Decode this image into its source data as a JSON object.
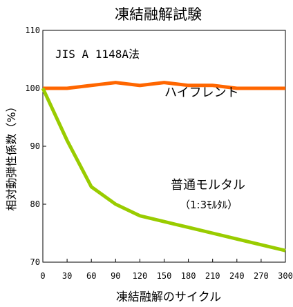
{
  "chart_data": {
    "type": "line",
    "title": "凍結融解試験",
    "xlabel": "凍結融解のサイクル",
    "ylabel": "相対動弾性係数（%）",
    "xlim": [
      0,
      300
    ],
    "ylim": [
      70,
      110
    ],
    "x_ticks": [
      "0",
      "30",
      "60",
      "90",
      "120",
      "150",
      "180",
      "210",
      "240",
      "270",
      "300"
    ],
    "y_ticks": [
      "70",
      "80",
      "90",
      "100",
      "110"
    ],
    "grid": false,
    "annotations": {
      "standard": "JIS A 1148A法",
      "sub_note": "（1:3ﾓﾙﾀﾙ）"
    },
    "x": [
      0,
      30,
      60,
      90,
      120,
      150,
      180,
      210,
      240,
      270,
      300
    ],
    "series": [
      {
        "name": "ハイフレント",
        "color": "#ff6600",
        "values": [
          100,
          100,
          100.5,
          101,
          100.5,
          101,
          100.5,
          100.5,
          100,
          100,
          100
        ]
      },
      {
        "name": "普通モルタル",
        "color": "#99cc00",
        "values": [
          100,
          91,
          83,
          80,
          78,
          77,
          76,
          75,
          74,
          73,
          72
        ]
      }
    ]
  }
}
